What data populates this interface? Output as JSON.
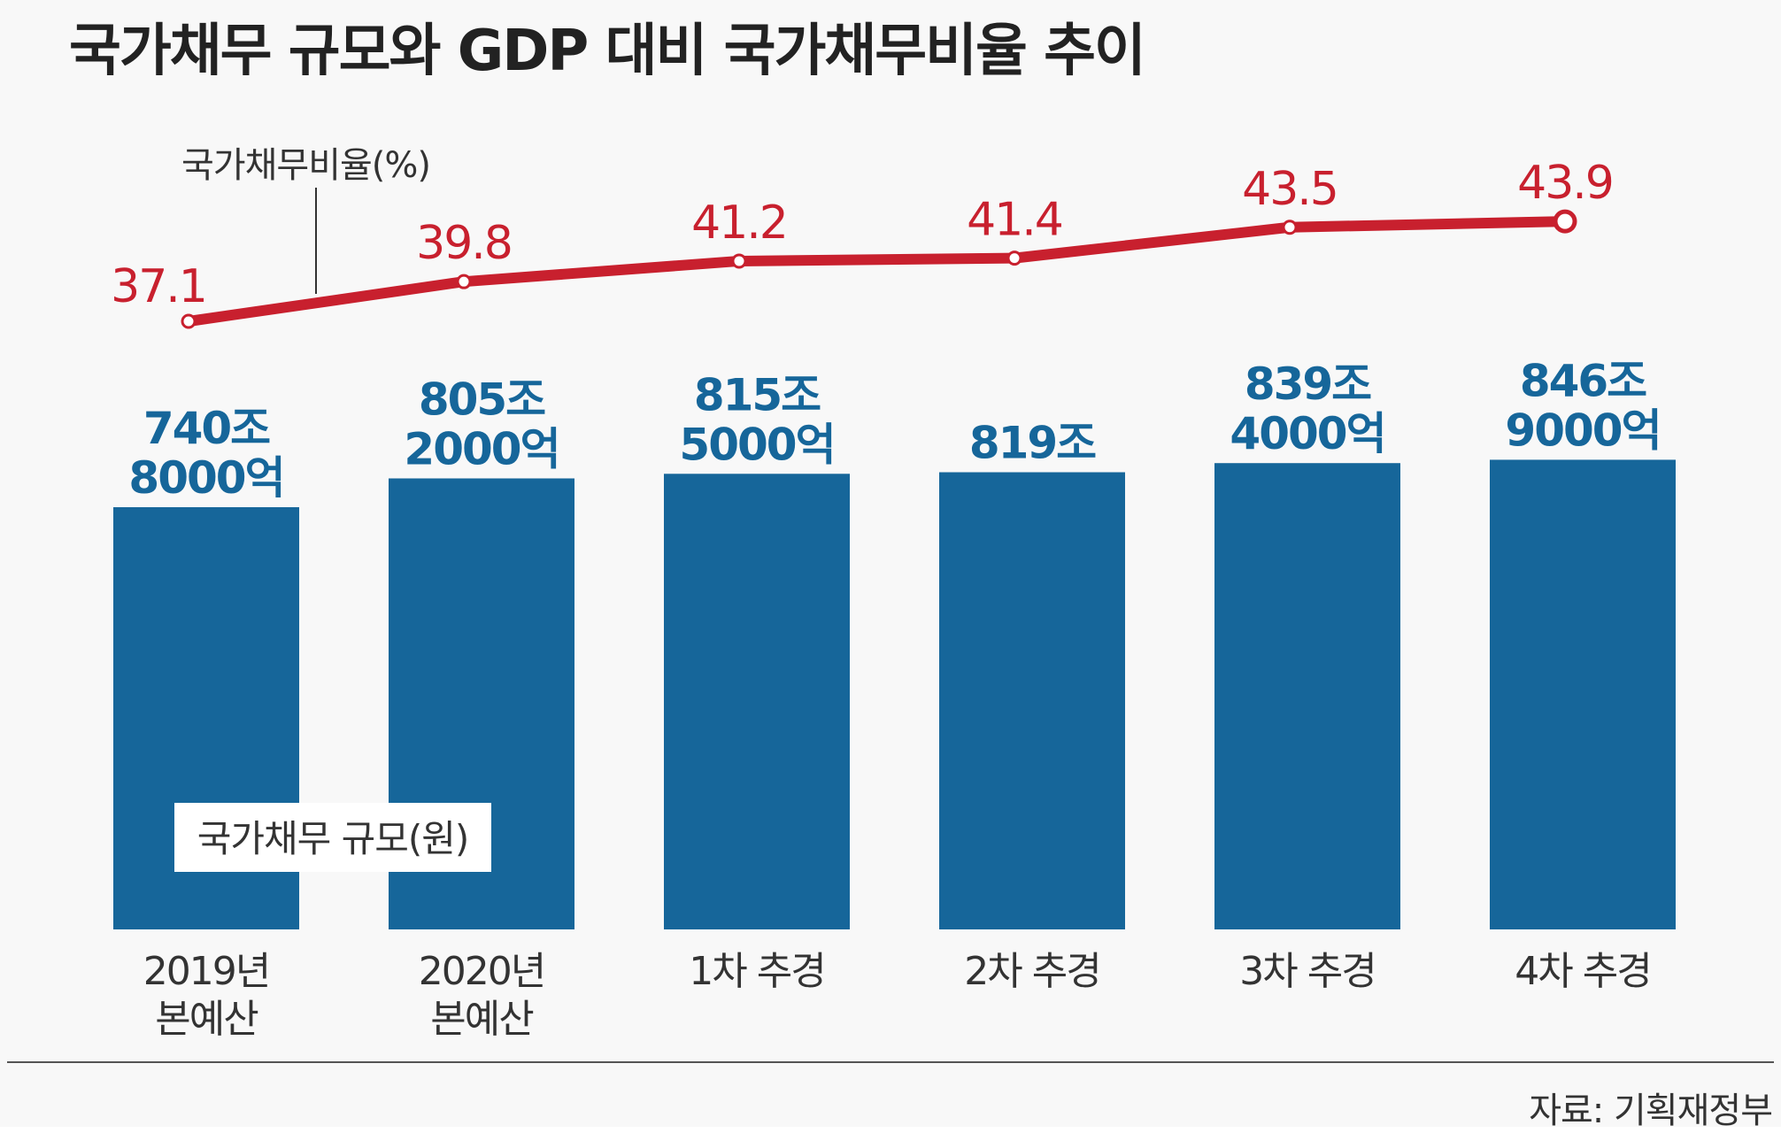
{
  "title": "국가채무 규모와 GDP 대비 국가채무비율 추이",
  "source": "자료: 기획재정부",
  "colors": {
    "bar": "#16669a",
    "line": "#c8202e",
    "value_text": "#16669a",
    "rate_text": "#c8202e"
  },
  "chart_data": {
    "type": "bar+line",
    "title": "국가채무 규모와 GDP 대비 국가채무비율 추이",
    "categories": [
      {
        "line1": "2019년",
        "line2": "본예산"
      },
      {
        "line1": "2020년",
        "line2": "본예산"
      },
      {
        "line1": "1차 추경",
        "line2": ""
      },
      {
        "line1": "2차 추경",
        "line2": ""
      },
      {
        "line1": "3차 추경",
        "line2": ""
      },
      {
        "line1": "4차 추경",
        "line2": ""
      }
    ],
    "series": [
      {
        "name": "국가채무 규모(원)",
        "type": "bar",
        "unit": "조원",
        "values": [
          740.8,
          805.2,
          815.5,
          819.0,
          839.4,
          846.9
        ],
        "labels": [
          {
            "line1": "740조",
            "line2": "8000억"
          },
          {
            "line1": "805조",
            "line2": "2000억"
          },
          {
            "line1": "815조",
            "line2": "5000억"
          },
          {
            "line1": "819조",
            "line2": ""
          },
          {
            "line1": "839조",
            "line2": "4000억"
          },
          {
            "line1": "846조",
            "line2": "9000억"
          }
        ]
      },
      {
        "name": "국가채무비율(%)",
        "type": "line",
        "unit": "%",
        "values": [
          37.1,
          39.8,
          41.2,
          41.4,
          43.5,
          43.9
        ],
        "labels": [
          "37.1",
          "39.8",
          "41.2",
          "41.4",
          "43.5",
          "43.9"
        ]
      }
    ],
    "bar_legend": "국가채무 규모(원)",
    "line_legend": "국가채무비율(%)"
  }
}
